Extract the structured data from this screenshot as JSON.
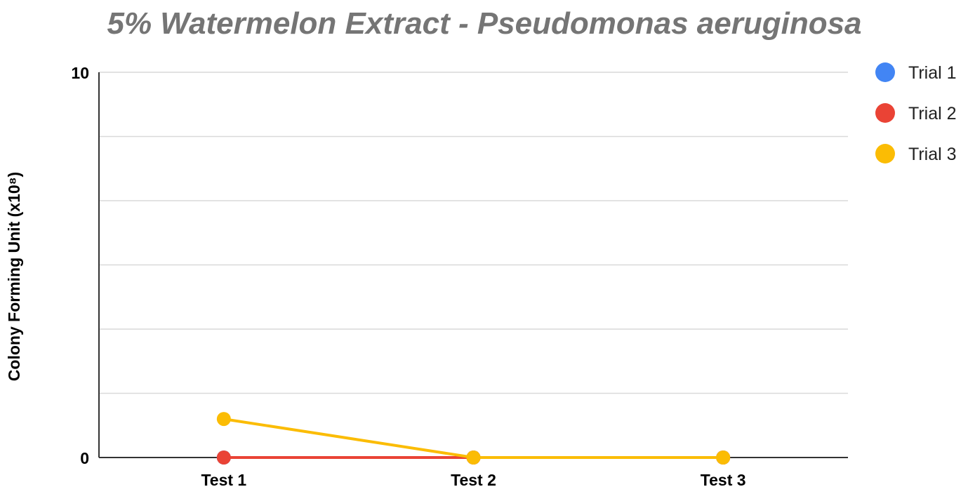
{
  "chart_data": {
    "type": "line",
    "title": "5% Watermelon Extract -  Pseudomonas aeruginosa",
    "xlabel": "",
    "ylabel": "Colony Forming Unit (x10⁸)",
    "categories": [
      "Test 1",
      "Test 2",
      "Test 3"
    ],
    "ylim": [
      0,
      10
    ],
    "y_ticks_labeled": [
      "0",
      "10"
    ],
    "grid": true,
    "legend_position": "right",
    "series": [
      {
        "name": "Trial 1",
        "color": "#4285F4",
        "values": [
          0,
          0,
          0
        ]
      },
      {
        "name": "Trial 2",
        "color": "#EA4335",
        "values": [
          0,
          0,
          0
        ]
      },
      {
        "name": "Trial 3",
        "color": "#FBBC04",
        "values": [
          1,
          0,
          0
        ]
      }
    ]
  }
}
